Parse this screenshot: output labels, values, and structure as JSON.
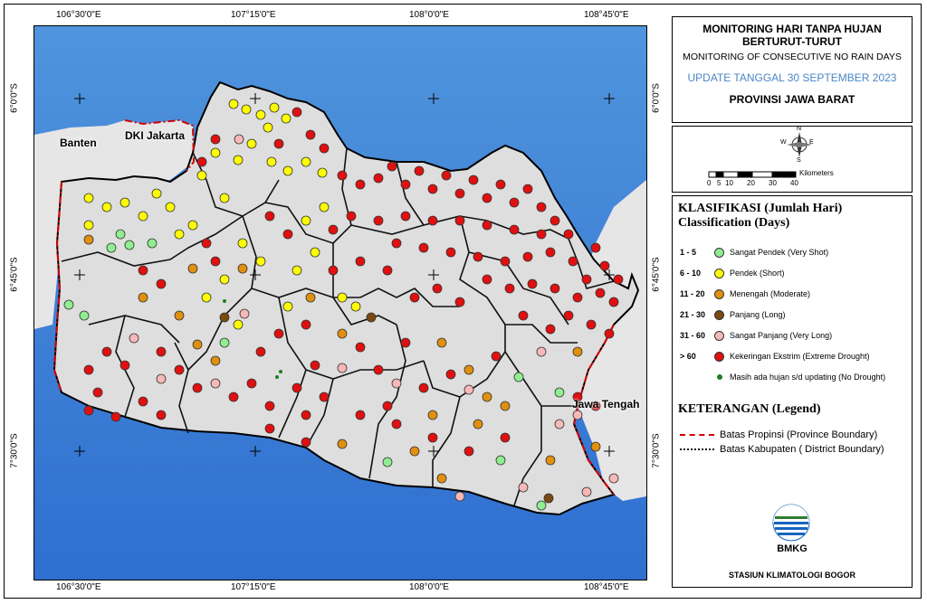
{
  "coords": {
    "top": [
      "106°30'0\"E",
      "107°15'0\"E",
      "108°0'0\"E",
      "108°45'0\"E"
    ],
    "bottom": [
      "106°30'0\"E",
      "107°15'0\"E",
      "108°0'0\"E",
      "108°45'0\"E"
    ],
    "left": [
      "6°0'0\"S",
      "6°45'0\"S",
      "7°30'0\"S"
    ],
    "right": [
      "6°0'0\"S",
      "6°45'0\"S",
      "7°30'0\"S"
    ]
  },
  "map_labels": {
    "banten": "Banten",
    "dki": "DKI Jakarta",
    "jateng": "Jawa Tengah"
  },
  "title": {
    "line1": "MONITORING HARI TANPA HUJAN",
    "line2": "BERTURUT-TURUT",
    "line3": "MONITORING OF CONSECUTIVE NO RAIN DAYS",
    "update": "UPDATE TANGGAL 30 SEPTEMBER 2023",
    "province": "PROVINSI JAWA BARAT"
  },
  "scale": {
    "unit": "Kilometers",
    "ticks": [
      "0",
      "5",
      "10",
      "20",
      "30",
      "40"
    ],
    "compass": [
      "N",
      "E",
      "S",
      "W"
    ]
  },
  "legend": {
    "title1": "KLASIFIKASI (Jumlah Hari)",
    "title2": "Classification (Days)",
    "classes": [
      {
        "range": "1 - 5",
        "label": "Sangat Pendek (Very Shot)",
        "color": "#90ee90"
      },
      {
        "range": "6 - 10",
        "label": "Pendek (Short)",
        "color": "#ffff00"
      },
      {
        "range": "11 - 20",
        "label": "Menengah (Moderate)",
        "color": "#e0900e"
      },
      {
        "range": "21 - 30",
        "label": "Panjang (Long)",
        "color": "#7a4a10"
      },
      {
        "range": "31 - 60",
        "label": "Sangat Panjang (Very Long)",
        "color": "#f7b8b8"
      },
      {
        "range": "> 60",
        "label": "Kekeringan Ekstrim (Extreme Drought)",
        "color": "#e01010"
      }
    ],
    "no_drought": "Masih ada hujan s/d updating (No Drought)",
    "no_drought_color": "#1e7d1e",
    "keterangan": "KETERANGAN (Legend)",
    "province_boundary": "Batas Propinsi (Province Boundary)",
    "district_boundary": "Batas Kabupaten ( District Boundary)",
    "province_boundary_color": "#d40000"
  },
  "bmkg": {
    "logo_text": "BMKG",
    "station": "STASIUN KLIMATOLOGI BOGOR"
  }
}
